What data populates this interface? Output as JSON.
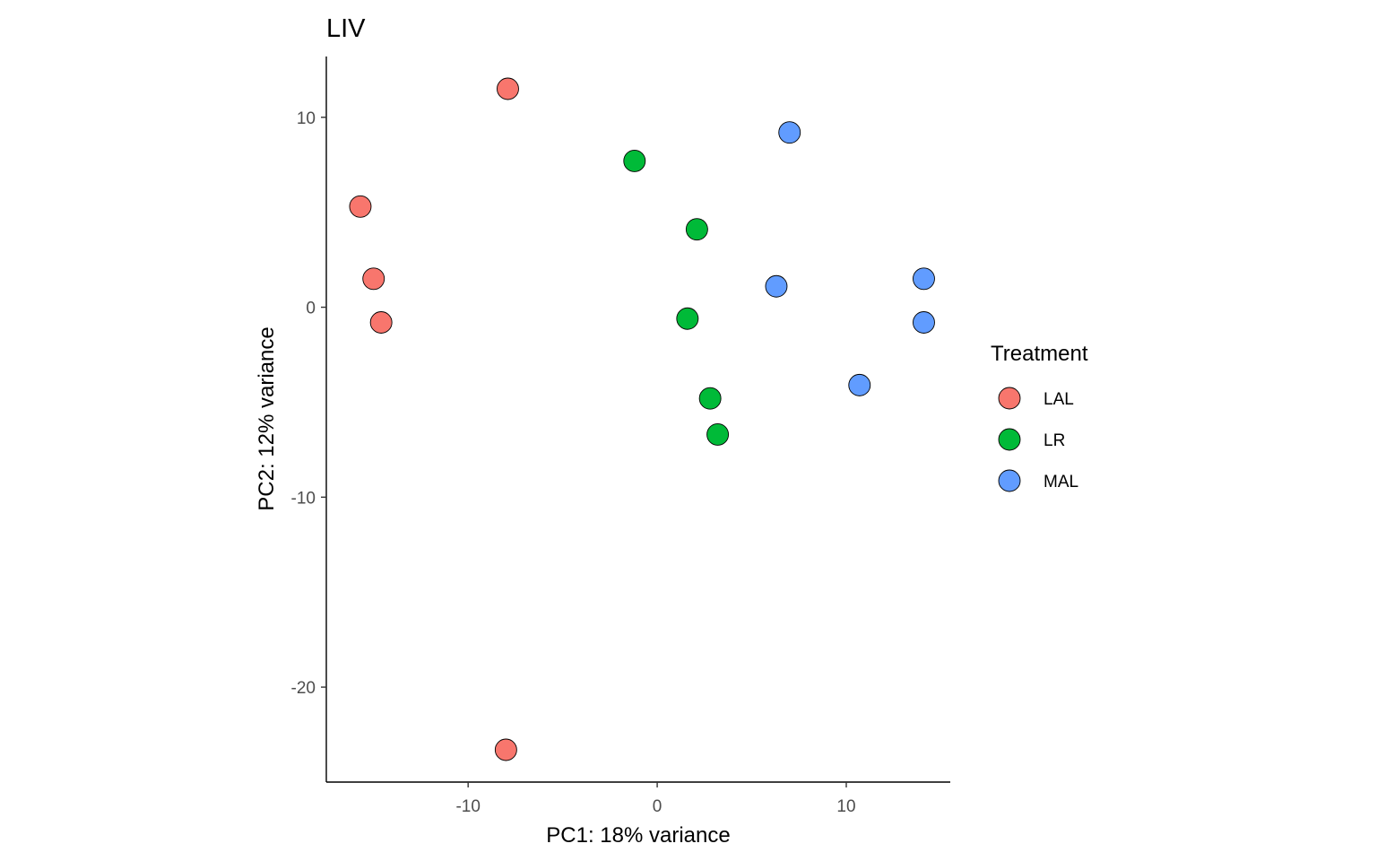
{
  "chart_data": {
    "type": "scatter",
    "title": "LIV",
    "xlabel": "PC1: 18% variance",
    "ylabel": "PC2: 12% variance",
    "xlim": [
      -17.5,
      15.5
    ],
    "ylim": [
      -25,
      13.2
    ],
    "x_ticks": [
      -10,
      0,
      10
    ],
    "x_tick_labels": [
      "-10",
      "0",
      "10"
    ],
    "y_ticks": [
      -20,
      -10,
      0,
      10
    ],
    "y_tick_labels": [
      "-20",
      "-10",
      "0",
      "10"
    ],
    "grid": false,
    "legend": {
      "title": "Treatment",
      "position": "right"
    },
    "series": [
      {
        "name": "LAL",
        "color": "#F8766D",
        "points": [
          {
            "x": -7.9,
            "y": 11.5
          },
          {
            "x": -15.7,
            "y": 5.3
          },
          {
            "x": -15.0,
            "y": 1.5
          },
          {
            "x": -14.6,
            "y": -0.8
          },
          {
            "x": -8.0,
            "y": -23.3
          }
        ]
      },
      {
        "name": "LR",
        "color": "#00BA38",
        "points": [
          {
            "x": -1.2,
            "y": 7.7
          },
          {
            "x": 2.1,
            "y": 4.1
          },
          {
            "x": 1.6,
            "y": -0.6
          },
          {
            "x": 2.8,
            "y": -4.8
          },
          {
            "x": 3.2,
            "y": -6.7
          }
        ]
      },
      {
        "name": "MAL",
        "color": "#619CFF",
        "points": [
          {
            "x": 7.0,
            "y": 9.2
          },
          {
            "x": 6.3,
            "y": 1.1
          },
          {
            "x": 14.1,
            "y": 1.5
          },
          {
            "x": 14.1,
            "y": -0.8
          },
          {
            "x": 10.7,
            "y": -4.1
          }
        ]
      }
    ]
  }
}
